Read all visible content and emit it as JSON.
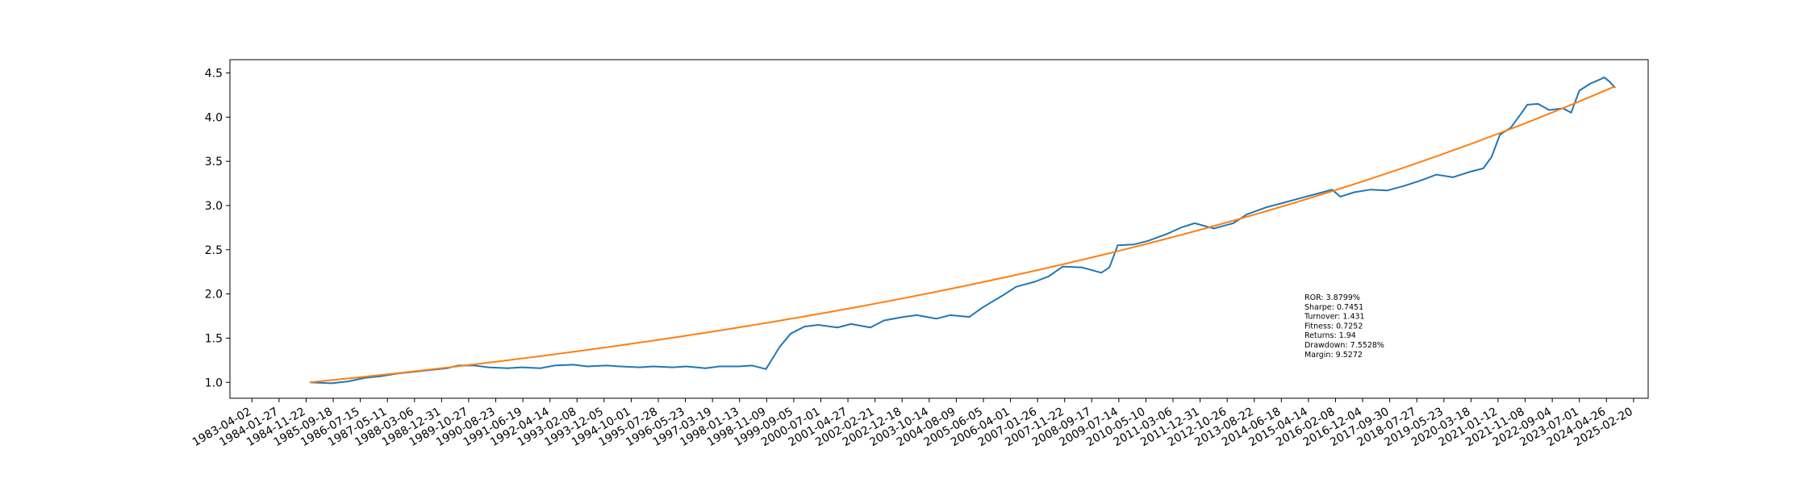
{
  "chart_data": {
    "type": "line",
    "grid": false,
    "legend": "none",
    "ylim": [
      0.82,
      4.65
    ],
    "xlim": [
      "1982-08-01",
      "2025-08-01"
    ],
    "yticks": [
      1.0,
      1.5,
      2.0,
      2.5,
      3.0,
      3.5,
      4.0,
      4.5
    ],
    "ytick_labels": [
      "1.0",
      "1.5",
      "2.0",
      "2.5",
      "3.0",
      "3.5",
      "4.0",
      "4.5"
    ],
    "xticks": [
      "1983-04-02",
      "1984-01-27",
      "1984-11-22",
      "1985-09-18",
      "1986-07-15",
      "1987-05-11",
      "1988-03-06",
      "1988-12-31",
      "1989-10-27",
      "1990-08-23",
      "1991-06-19",
      "1992-04-14",
      "1993-02-08",
      "1993-12-05",
      "1994-10-01",
      "1995-07-28",
      "1996-05-23",
      "1997-03-19",
      "1998-01-13",
      "1998-11-09",
      "1999-09-05",
      "2000-07-01",
      "2001-04-27",
      "2002-02-21",
      "2002-12-18",
      "2003-10-14",
      "2004-08-09",
      "2005-06-05",
      "2006-04-01",
      "2007-01-26",
      "2007-11-22",
      "2008-09-17",
      "2009-07-14",
      "2010-05-10",
      "2011-03-06",
      "2011-12-31",
      "2012-10-26",
      "2013-08-22",
      "2014-06-18",
      "2015-04-14",
      "2016-02-08",
      "2016-12-04",
      "2017-09-30",
      "2018-07-27",
      "2019-05-23",
      "2020-03-18",
      "2021-01-12",
      "2021-11-08",
      "2022-09-04",
      "2023-07-01",
      "2024-04-26",
      "2025-02-20"
    ],
    "series": [
      {
        "color": "#1f77b4",
        "points": [
          [
            "1985-01-01",
            1.0
          ],
          [
            "1985-09-01",
            0.99
          ],
          [
            "1986-03-01",
            1.01
          ],
          [
            "1986-09-01",
            1.05
          ],
          [
            "1987-03-01",
            1.07
          ],
          [
            "1987-09-01",
            1.1
          ],
          [
            "1988-03-01",
            1.12
          ],
          [
            "1988-09-01",
            1.14
          ],
          [
            "1989-03-01",
            1.16
          ],
          [
            "1989-07-01",
            1.19
          ],
          [
            "1990-01-01",
            1.19
          ],
          [
            "1990-06-01",
            1.17
          ],
          [
            "1991-01-01",
            1.16
          ],
          [
            "1991-06-01",
            1.17
          ],
          [
            "1992-01-01",
            1.16
          ],
          [
            "1992-06-01",
            1.19
          ],
          [
            "1993-01-01",
            1.2
          ],
          [
            "1993-06-01",
            1.18
          ],
          [
            "1994-01-01",
            1.19
          ],
          [
            "1994-06-01",
            1.18
          ],
          [
            "1995-01-01",
            1.17
          ],
          [
            "1995-06-01",
            1.18
          ],
          [
            "1996-01-01",
            1.17
          ],
          [
            "1996-06-01",
            1.18
          ],
          [
            "1997-01-01",
            1.16
          ],
          [
            "1997-06-01",
            1.18
          ],
          [
            "1998-01-01",
            1.18
          ],
          [
            "1998-06-01",
            1.19
          ],
          [
            "1998-11-01",
            1.15
          ],
          [
            "1999-01-01",
            1.25
          ],
          [
            "1999-04-01",
            1.4
          ],
          [
            "1999-08-01",
            1.55
          ],
          [
            "2000-01-01",
            1.63
          ],
          [
            "2000-06-01",
            1.65
          ],
          [
            "2001-01-01",
            1.62
          ],
          [
            "2001-06-01",
            1.66
          ],
          [
            "2002-01-01",
            1.62
          ],
          [
            "2002-06-01",
            1.7
          ],
          [
            "2003-01-01",
            1.74
          ],
          [
            "2003-06-01",
            1.76
          ],
          [
            "2004-01-01",
            1.72
          ],
          [
            "2004-06-01",
            1.76
          ],
          [
            "2005-01-01",
            1.74
          ],
          [
            "2005-06-01",
            1.85
          ],
          [
            "2006-01-01",
            1.98
          ],
          [
            "2006-06-01",
            2.08
          ],
          [
            "2007-01-01",
            2.14
          ],
          [
            "2007-06-01",
            2.2
          ],
          [
            "2007-11-01",
            2.31
          ],
          [
            "2008-06-01",
            2.3
          ],
          [
            "2009-01-01",
            2.24
          ],
          [
            "2009-04-01",
            2.3
          ],
          [
            "2009-07-01",
            2.55
          ],
          [
            "2010-01-01",
            2.56
          ],
          [
            "2010-06-01",
            2.6
          ],
          [
            "2011-01-01",
            2.68
          ],
          [
            "2011-06-01",
            2.75
          ],
          [
            "2011-11-01",
            2.8
          ],
          [
            "2012-06-01",
            2.74
          ],
          [
            "2013-01-01",
            2.8
          ],
          [
            "2013-06-01",
            2.9
          ],
          [
            "2014-01-01",
            2.98
          ],
          [
            "2014-06-01",
            3.02
          ],
          [
            "2015-01-01",
            3.08
          ],
          [
            "2015-06-01",
            3.12
          ],
          [
            "2016-01-01",
            3.18
          ],
          [
            "2016-04-01",
            3.1
          ],
          [
            "2016-09-01",
            3.15
          ],
          [
            "2017-03-01",
            3.18
          ],
          [
            "2017-09-01",
            3.17
          ],
          [
            "2018-03-01",
            3.22
          ],
          [
            "2018-09-01",
            3.28
          ],
          [
            "2019-03-01",
            3.35
          ],
          [
            "2019-09-01",
            3.32
          ],
          [
            "2020-03-01",
            3.38
          ],
          [
            "2020-08-01",
            3.42
          ],
          [
            "2020-11-01",
            3.55
          ],
          [
            "2021-02-01",
            3.8
          ],
          [
            "2021-06-01",
            3.88
          ],
          [
            "2021-10-01",
            4.05
          ],
          [
            "2021-12-01",
            4.14
          ],
          [
            "2022-04-01",
            4.15
          ],
          [
            "2022-08-01",
            4.08
          ],
          [
            "2023-01-01",
            4.1
          ],
          [
            "2023-04-01",
            4.05
          ],
          [
            "2023-07-01",
            4.3
          ],
          [
            "2023-11-01",
            4.38
          ],
          [
            "2024-02-01",
            4.42
          ],
          [
            "2024-04-01",
            4.45
          ],
          [
            "2024-06-01",
            4.4
          ],
          [
            "2024-08-01",
            4.33
          ]
        ]
      },
      {
        "color": "#ff7f0e",
        "kind": "exponential",
        "start_date": "1985-01-01",
        "end_date": "2024-08-01",
        "start_value": 1.0,
        "end_value": 4.35
      }
    ],
    "annotation": {
      "lines": [
        "ROR: 3.8799%",
        "Sharpe: 0.7451",
        "Turnover: 1.431",
        "Fitness: 0.7252",
        "Returns: 1.94",
        "Drawdown: 7.5528%",
        "Margin: 9.5272"
      ]
    }
  }
}
